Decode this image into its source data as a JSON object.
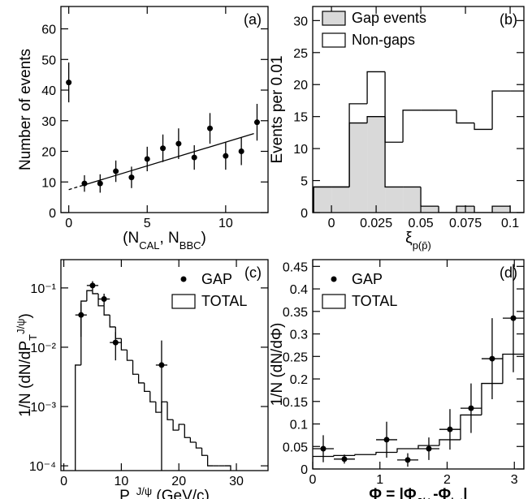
{
  "chart_data": [
    {
      "type": "scatter",
      "label": "(a)",
      "ylabel": [
        {
          "text": "Number of events"
        }
      ],
      "xlabel": [
        {
          "text": "(N"
        },
        {
          "text": "CAL",
          "shift": "sub"
        },
        {
          "text": ", N"
        },
        {
          "text": "BBC",
          "shift": "sub"
        },
        {
          "text": ")"
        }
      ],
      "xlim": [
        -0.5,
        12.7
      ],
      "ylim": [
        0,
        67.3
      ],
      "xticks": [
        0,
        5,
        10
      ],
      "yticks": [
        0,
        10,
        20,
        30,
        40,
        50,
        60
      ],
      "log": false,
      "series": [
        {
          "kind": "points",
          "color": "#000000",
          "x": [
            0,
            1,
            2,
            3,
            4,
            5,
            6,
            7,
            8,
            9,
            10,
            11,
            12
          ],
          "values": [
            42.5,
            9.5,
            9.5,
            13.5,
            11.5,
            17.5,
            21,
            22.5,
            18,
            27.5,
            18.5,
            20,
            29.5
          ],
          "yerr": [
            6.5,
            2.7,
            3,
            3.5,
            3.5,
            4,
            4.5,
            5,
            4,
            5,
            4.5,
            4.5,
            6
          ]
        },
        {
          "kind": "line",
          "color": "#000000",
          "x": [
            0,
            1,
            11.8
          ],
          "values": [
            7.5,
            9.05,
            25.8
          ],
          "dashes": [
            true,
            false
          ]
        }
      ]
    },
    {
      "type": "histogram",
      "label": "(b)",
      "ylabel": [
        {
          "text": "Events per 0.01"
        }
      ],
      "xlabel": [
        {
          "text": "ξ"
        },
        {
          "text": "p(p̄)",
          "shift": "sub"
        }
      ],
      "xlim": [
        -0.0105,
        0.1077
      ],
      "ylim": [
        0,
        32.2
      ],
      "xticks": [
        0,
        0.025,
        0.05,
        0.075,
        0.1
      ],
      "yticks": [
        0,
        5,
        10,
        15,
        20,
        25,
        30
      ],
      "log": false,
      "legend": "upper left",
      "series": [
        {
          "kind": "step",
          "name": "Gap events",
          "color": "#d9d9d9",
          "bins": [
            -0.01,
            0,
            0.01,
            0.02,
            0.03,
            0.04,
            0.05,
            0.06,
            0.07,
            0.08,
            0.09,
            0.1,
            0.11
          ],
          "values": [
            4,
            4,
            14,
            15,
            4,
            4,
            1,
            0,
            1,
            0,
            1,
            0
          ]
        },
        {
          "kind": "step",
          "name": "Non-gaps",
          "color": "none",
          "bins": [
            -0.01,
            0,
            0.01,
            0.02,
            0.03,
            0.04,
            0.05,
            0.06,
            0.07,
            0.08,
            0.09,
            0.1,
            0.11
          ],
          "values": [
            4,
            4,
            17,
            22,
            11,
            16,
            16,
            16,
            14,
            13,
            19,
            19
          ]
        }
      ]
    },
    {
      "type": "histogram",
      "label": "(c)",
      "ylabel": [
        {
          "text": "1/N (dN/dP"
        },
        {
          "text": "T",
          "shift": "sub"
        },
        {
          "text": "J/ψ",
          "shift": "sup"
        },
        {
          "text": ")"
        }
      ],
      "xlabel": [
        {
          "text": "P"
        },
        {
          "text": "T",
          "shift": "sub"
        },
        {
          "text": "J/ψ",
          "shift": "sup"
        },
        {
          "text": " (GeV/c)"
        }
      ],
      "xlim": [
        -0.5,
        35.5
      ],
      "ylim": [
        8.3e-05,
        0.3
      ],
      "xticks": [
        0,
        10,
        20,
        30
      ],
      "yticks": [
        {
          "value": 0.1,
          "label": "10⁻¹"
        },
        {
          "value": 0.01,
          "label": "10⁻²"
        },
        {
          "value": 0.001,
          "label": "10⁻³"
        },
        {
          "value": 0.0001,
          "label": "10⁻⁴"
        }
      ],
      "log": true,
      "legend": "upper right",
      "series": [
        {
          "kind": "points",
          "name": "GAP",
          "color": "#000000",
          "x": [
            3,
            5,
            7,
            9,
            17
          ],
          "values": [
            0.035,
            0.11,
            0.065,
            0.012,
            0.005
          ],
          "yerr": [
            0.02,
            0.02,
            0.015,
            0.006,
            0.008
          ],
          "xerr": [
            1,
            1,
            1,
            1,
            1
          ]
        },
        {
          "kind": "step",
          "name": "TOTAL",
          "color": "none",
          "bins": [
            2,
            3,
            4,
            5,
            6,
            7,
            8,
            9,
            10,
            11,
            12,
            13,
            14,
            15,
            16,
            17,
            18,
            19,
            20,
            21,
            22,
            23,
            24,
            25,
            26,
            27,
            28,
            29
          ],
          "values": [
            0.005,
            0.06,
            0.09,
            0.08,
            0.05,
            0.035,
            0.022,
            0.014,
            0.009,
            0.006,
            0.0035,
            0.0025,
            0.0018,
            0.0012,
            0.0008,
            0.0012,
            0.0006,
            0.0004,
            0.0005,
            0.0003,
            0.00025,
            0.0002,
            0.00015,
            0.0001,
            0.0001,
            0.0001,
            0.0001
          ]
        }
      ]
    },
    {
      "type": "histogram",
      "label": "(d)",
      "ylabel": [
        {
          "text": "1/N (dN/dΦ)"
        }
      ],
      "xlabel": [
        {
          "text": "Φ = |Φ"
        },
        {
          "text": "J/ψ",
          "shift": "sub"
        },
        {
          "text": "-Φ"
        },
        {
          "text": "jet",
          "shift": "sub"
        },
        {
          "text": "|"
        }
      ],
      "xlim": [
        0,
        3.142
      ],
      "ylim": [
        0,
        0.465
      ],
      "xticks": [
        0,
        1,
        2,
        3
      ],
      "yticks": [
        0,
        0.05,
        0.1,
        0.15,
        0.2,
        0.25,
        0.3,
        0.35,
        0.4,
        0.45
      ],
      "log": false,
      "legend": "upper left",
      "series": [
        {
          "kind": "points",
          "name": "GAP",
          "color": "#000000",
          "x": [
            0.157,
            0.471,
            1.1,
            1.414,
            1.728,
            2.042,
            2.356,
            2.67,
            2.985
          ],
          "values": [
            0.045,
            0.022,
            0.065,
            0.02,
            0.045,
            0.088,
            0.135,
            0.245,
            0.335
          ],
          "yerr": [
            0.03,
            0.01,
            0.04,
            0.015,
            0.025,
            0.045,
            0.055,
            0.09,
            0.12
          ],
          "xerr": [
            0.157,
            0.157,
            0.157,
            0.157,
            0.157,
            0.157,
            0.157,
            0.157,
            0.157
          ]
        },
        {
          "kind": "step",
          "name": "TOTAL",
          "color": "none",
          "bins": [
            0,
            0.314,
            0.628,
            0.942,
            1.257,
            1.571,
            1.885,
            2.199,
            2.513,
            2.827,
            3.142
          ],
          "values": [
            0.028,
            0.03,
            0.032,
            0.037,
            0.045,
            0.052,
            0.065,
            0.12,
            0.19,
            0.255
          ]
        }
      ]
    }
  ]
}
